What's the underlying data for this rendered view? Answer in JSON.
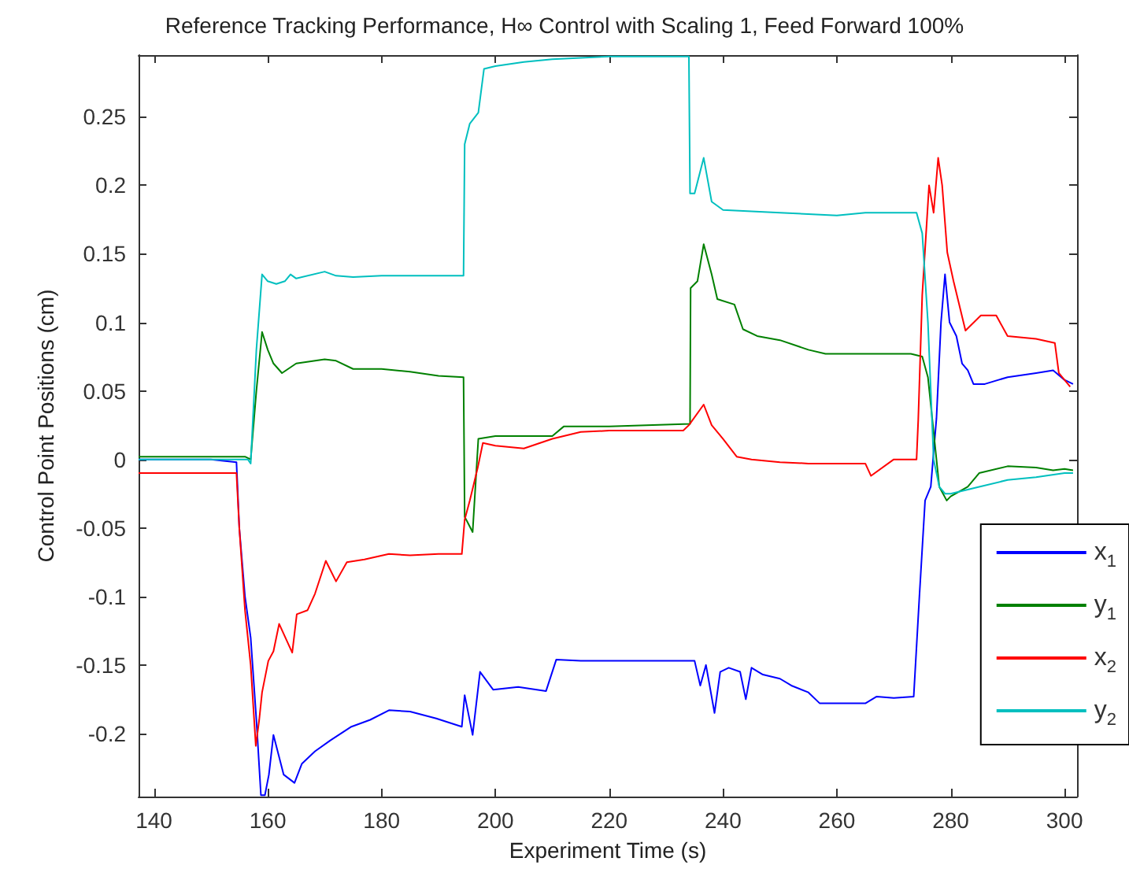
{
  "chart_data": {
    "type": "line",
    "title": "Reference Tracking Performance, H∞ Control with Scaling 1, Feed Forward 100%",
    "xlabel": "Experiment Time (s)",
    "ylabel": "Control Point Positions (cm)",
    "xlim": [
      137.3,
      302.2
    ],
    "xticks": [
      140,
      160,
      180,
      200,
      220,
      240,
      260,
      280,
      300
    ],
    "ylim": [
      -0.246,
      0.295
    ],
    "yticks": [
      -0.2,
      -0.15,
      -0.1,
      -0.05,
      0,
      0.05,
      0.1,
      0.15,
      0.2,
      0.25
    ],
    "legend": "right",
    "grid": false,
    "series": [
      {
        "name": "x$_{1}$",
        "color": "#0000ff",
        "x": [
          137.3,
          150,
          154.5,
          155,
          156,
          157,
          158,
          158.8,
          159.5,
          160.2,
          161,
          162.8,
          164.7,
          166,
          168.3,
          171,
          174.7,
          178,
          181.3,
          185,
          189.6,
          194.1,
          194.6,
          196,
          197.3,
          199.6,
          204,
          208.9,
          210.7,
          215,
          220,
          225,
          230,
          235,
          236,
          237,
          238.5,
          239.5,
          241,
          243,
          244,
          245,
          247,
          250,
          252,
          255,
          257,
          260,
          265,
          267,
          270,
          273.5,
          274.5,
          275.5,
          276.5,
          277.5,
          278.3,
          279,
          279.8,
          281,
          282,
          283,
          284,
          286,
          290,
          295,
          298,
          300,
          301.5
        ],
        "values": [
          0,
          0,
          -0.002,
          -0.05,
          -0.1,
          -0.13,
          -0.19,
          -0.245,
          -0.245,
          -0.23,
          -0.201,
          -0.23,
          -0.236,
          -0.222,
          -0.213,
          -0.205,
          -0.195,
          -0.19,
          -0.183,
          -0.184,
          -0.189,
          -0.195,
          -0.172,
          -0.201,
          -0.155,
          -0.168,
          -0.166,
          -0.169,
          -0.146,
          -0.147,
          -0.147,
          -0.147,
          -0.147,
          -0.147,
          -0.165,
          -0.15,
          -0.185,
          -0.155,
          -0.152,
          -0.155,
          -0.175,
          -0.152,
          -0.157,
          -0.16,
          -0.165,
          -0.17,
          -0.178,
          -0.178,
          -0.178,
          -0.173,
          -0.174,
          -0.173,
          -0.1,
          -0.03,
          -0.02,
          0.03,
          0.1,
          0.135,
          0.1,
          0.09,
          0.07,
          0.065,
          0.055,
          0.055,
          0.06,
          0.063,
          0.065,
          0.058,
          0.055
        ]
      },
      {
        "name": "y$_{1}$",
        "color": "#008000",
        "x": [
          137.3,
          156,
          157,
          158,
          159,
          160,
          161,
          162.5,
          165,
          170,
          172,
          175,
          180,
          185,
          190,
          194.4,
          194.6,
          195,
          196,
          197,
          200,
          210,
          212,
          220,
          234.2,
          234.3,
          235.5,
          236.6,
          238,
          239,
          242,
          243.5,
          246,
          250,
          255,
          258,
          273,
          275,
          276,
          277,
          278,
          279.3,
          280,
          283,
          285,
          290,
          295,
          298,
          300,
          301.5
        ],
        "values": [
          0.002,
          0.002,
          0,
          0.05,
          0.093,
          0.08,
          0.07,
          0.063,
          0.07,
          0.073,
          0.072,
          0.066,
          0.066,
          0.064,
          0.061,
          0.06,
          -0.042,
          -0.045,
          -0.053,
          0.015,
          0.017,
          0.017,
          0.024,
          0.024,
          0.026,
          0.125,
          0.13,
          0.157,
          0.135,
          0.117,
          0.113,
          0.095,
          0.09,
          0.087,
          0.08,
          0.077,
          0.077,
          0.075,
          0.06,
          0.02,
          -0.02,
          -0.03,
          -0.027,
          -0.02,
          -0.01,
          -0.005,
          -0.006,
          -0.008,
          -0.007,
          -0.008
        ]
      },
      {
        "name": "x$_{2}$",
        "color": "#ff0000",
        "x": [
          137.3,
          145,
          150,
          154.5,
          155,
          155.5,
          156,
          157,
          157.9,
          158.5,
          159,
          160.1,
          161,
          162,
          164.3,
          165.1,
          167,
          168.3,
          170.2,
          172,
          173.9,
          177,
          181.3,
          185,
          190,
          194.1,
          194.6,
          195.5,
          196.9,
          197.8,
          200,
          205,
          210,
          215,
          220,
          233,
          234,
          236.6,
          238,
          240,
          242.4,
          245,
          250,
          255,
          260,
          265,
          266,
          270,
          274,
          274.3,
          275,
          276.2,
          277,
          277.8,
          278.5,
          279.4,
          280.5,
          282.6,
          285.3,
          288,
          290,
          295,
          298.3,
          299,
          301
        ],
        "values": [
          -0.01,
          -0.01,
          -0.01,
          -0.01,
          -0.05,
          -0.08,
          -0.11,
          -0.15,
          -0.209,
          -0.19,
          -0.17,
          -0.147,
          -0.14,
          -0.12,
          -0.141,
          -0.113,
          -0.11,
          -0.098,
          -0.074,
          -0.089,
          -0.075,
          -0.073,
          -0.069,
          -0.07,
          -0.069,
          -0.069,
          -0.044,
          -0.03,
          -0.006,
          0.012,
          0.01,
          0.008,
          0.015,
          0.02,
          0.021,
          0.021,
          0.025,
          0.04,
          0.025,
          0.015,
          0.002,
          0.0,
          -0.002,
          -0.003,
          -0.003,
          -0.003,
          -0.012,
          0.0,
          0.0,
          0.029,
          0.12,
          0.2,
          0.18,
          0.22,
          0.2,
          0.151,
          0.13,
          0.094,
          0.105,
          0.105,
          0.09,
          0.088,
          0.085,
          0.063,
          0.053
        ]
      },
      {
        "name": "y$_{2}$",
        "color": "#00bfbf",
        "x": [
          137.3,
          156.5,
          157,
          158,
          159,
          160,
          161.5,
          163,
          164,
          165,
          170,
          172,
          175,
          180,
          194.4,
          194.6,
          195.5,
          197,
          198,
          200,
          205,
          210,
          220,
          234,
          234.2,
          235,
          236.6,
          238,
          240,
          245,
          250,
          260,
          265,
          274,
          275,
          276,
          277,
          278,
          279,
          280,
          285,
          290,
          295,
          300,
          301.5
        ],
        "values": [
          0,
          0,
          -0.003,
          0.08,
          0.135,
          0.13,
          0.128,
          0.13,
          0.135,
          0.132,
          0.137,
          0.134,
          0.133,
          0.134,
          0.134,
          0.23,
          0.245,
          0.253,
          0.285,
          0.287,
          0.29,
          0.292,
          0.294,
          0.294,
          0.194,
          0.194,
          0.22,
          0.188,
          0.182,
          0.181,
          0.18,
          0.178,
          0.18,
          0.18,
          0.165,
          0.1,
          0.0,
          -0.02,
          -0.025,
          -0.025,
          -0.02,
          -0.015,
          -0.013,
          -0.01,
          -0.01
        ]
      }
    ]
  }
}
